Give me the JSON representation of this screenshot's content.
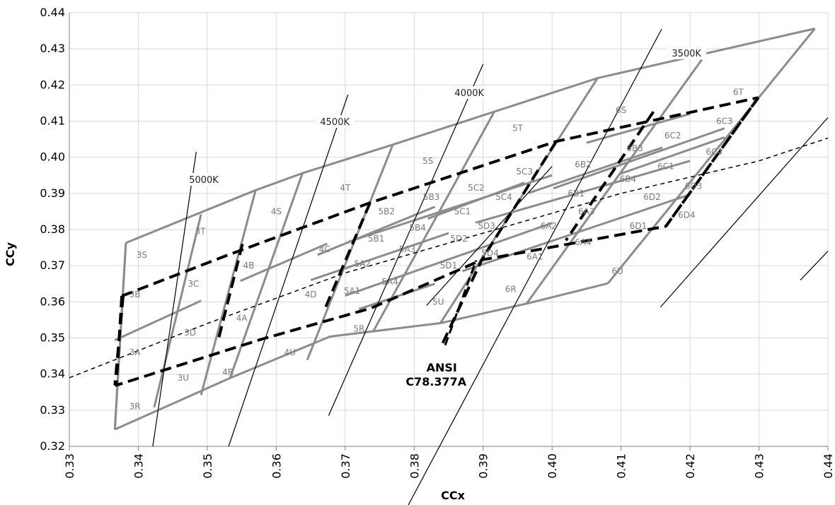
{
  "chart_data": {
    "type": "scatter",
    "xlabel": "CCx",
    "ylabel": "CCy",
    "xlim": [
      0.33,
      0.44
    ],
    "ylim": [
      0.32,
      0.44
    ],
    "xticks": [
      "0.33",
      "0.34",
      "0.35",
      "0.36",
      "0.37",
      "0.38",
      "0.39",
      "0.40",
      "0.41",
      "0.42",
      "0.43",
      "0.44"
    ],
    "yticks": [
      "0.32",
      "0.33",
      "0.34",
      "0.35",
      "0.36",
      "0.37",
      "0.38",
      "0.39",
      "0.40",
      "0.41",
      "0.42",
      "0.43",
      "0.44"
    ],
    "grid": true,
    "colors": {
      "bins": "#8c8c8c",
      "ansi": "#000000",
      "planck": "#000000",
      "cct_lines": "#000000",
      "light_dash": "#c8c8c8"
    },
    "series": [
      {
        "name": "outer_bins",
        "style": "gray",
        "lines": [
          [
            [
              0.3366,
              0.3247
            ],
            [
              0.3533,
              0.3389
            ],
            [
              0.3678,
              0.3504
            ],
            [
              0.3838,
              0.3541
            ],
            [
              0.3963,
              0.3595
            ],
            [
              0.4081,
              0.3651
            ]
          ],
          [
            [
              0.3366,
              0.3247
            ],
            [
              0.3382,
              0.3763
            ]
          ],
          [
            [
              0.3382,
              0.3763
            ],
            [
              0.3569,
              0.3908
            ],
            [
              0.3638,
              0.3956
            ],
            [
              0.3769,
              0.4035
            ],
            [
              0.4066,
              0.4219
            ],
            [
              0.4381,
              0.4356
            ]
          ],
          [
            [
              0.3423,
              0.3308
            ],
            [
              0.3491,
              0.3842
            ]
          ],
          [
            [
              0.3491,
              0.3342
            ],
            [
              0.357,
              0.3908
            ]
          ],
          [
            [
              0.3533,
              0.3389
            ],
            [
              0.3638,
              0.3956
            ]
          ],
          [
            [
              0.3645,
              0.3439
            ],
            [
              0.3769,
              0.4035
            ]
          ],
          [
            [
              0.374,
              0.3516
            ],
            [
              0.3916,
              0.4125
            ]
          ],
          [
            [
              0.3838,
              0.3541
            ],
            [
              0.4066,
              0.4219
            ]
          ],
          [
            [
              0.3963,
              0.3595
            ],
            [
              0.4217,
              0.427
            ]
          ],
          [
            [
              0.4081,
              0.3651
            ],
            [
              0.4381,
              0.4356
            ]
          ],
          [
            [
              0.3382,
              0.3763
            ],
            [
              0.3366,
              0.3247
            ]
          ],
          [
            [
              0.3366,
              0.3494
            ],
            [
              0.3491,
              0.3603
            ]
          ],
          [
            [
              0.3548,
              0.3658
            ],
            [
              0.3674,
              0.3761
            ]
          ],
          [
            [
              0.3706,
              0.3767
            ],
            [
              0.4,
              0.395
            ]
          ],
          [
            [
              0.366,
              0.373
            ],
            [
              0.383,
              0.3863
            ]
          ],
          [
            [
              0.382,
              0.383
            ],
            [
              0.396,
              0.393
            ]
          ],
          [
            [
              0.3889,
              0.3819
            ],
            [
              0.42,
              0.399
            ]
          ],
          [
            [
              0.37,
              0.3617
            ],
            [
              0.4,
              0.3818
            ]
          ],
          [
            [
              0.372,
              0.358
            ],
            [
              0.383,
              0.365
            ]
          ],
          [
            [
              0.387,
              0.3685
            ],
            [
              0.42,
              0.3897
            ]
          ],
          [
            [
              0.41,
              0.3955
            ],
            [
              0.425,
              0.4055
            ]
          ],
          [
            [
              0.405,
              0.404
            ],
            [
              0.42,
              0.412
            ]
          ],
          [
            [
              0.4002,
              0.3914
            ],
            [
              0.425,
              0.408
            ]
          ],
          [
            [
              0.365,
              0.366
            ],
            [
              0.385,
              0.379
            ]
          ],
          [
            [
              0.3966,
              0.3901
            ],
            [
              0.416,
              0.4027
            ]
          ]
        ]
      },
      {
        "name": "ansi_quadrangles",
        "style": "black-dash",
        "lines": [
          [
            [
              0.3376,
              0.3616
            ],
            [
              0.3528,
              0.3728
            ],
            [
              0.3736,
              0.3874
            ],
            [
              0.4006,
              0.4044
            ],
            [
              0.4299,
              0.4165
            ]
          ],
          [
            [
              0.3376,
              0.3616
            ],
            [
              0.3368,
              0.3369
            ],
            [
              0.3578,
              0.3496
            ],
            [
              0.3737,
              0.3582
            ],
            [
              0.3898,
              0.3716
            ],
            [
              0.4165,
              0.3809
            ],
            [
              0.4299,
              0.4165
            ]
          ],
          [
            [
              0.3378,
              0.3616
            ],
            [
              0.3366,
              0.3369
            ]
          ],
          [
            [
              0.3551,
              0.376
            ],
            [
              0.3515,
              0.3487
            ]
          ],
          [
            [
              0.3736,
              0.3874
            ],
            [
              0.367,
              0.3578
            ]
          ],
          [
            [
              0.4006,
              0.4044
            ],
            [
              0.3898,
              0.3716
            ],
            [
              0.384,
              0.348
            ]
          ],
          [
            [
              0.4147,
              0.4126
            ],
            [
              0.402,
              0.377
            ]
          ],
          [
            [
              0.4299,
              0.4165
            ],
            [
              0.4165,
              0.3809
            ]
          ]
        ]
      },
      {
        "name": "planckian_locus",
        "style": "thin-dash",
        "points": [
          [
            0.33,
            0.339
          ],
          [
            0.35,
            0.354
          ],
          [
            0.37,
            0.368
          ],
          [
            0.39,
            0.379
          ],
          [
            0.41,
            0.39
          ],
          [
            0.43,
            0.399
          ],
          [
            0.44,
            0.4053
          ]
        ]
      },
      {
        "name": "cct_lines",
        "style": "thin-solid",
        "lines": [
          [
            [
              0.3421,
              0.32
            ],
            [
              0.3484,
              0.4015
            ]
          ],
          [
            [
              0.3531,
              0.32
            ],
            [
              0.3704,
              0.4173
            ]
          ],
          [
            [
              0.3676,
              0.3285
            ],
            [
              0.39,
              0.4258
            ]
          ],
          [
            [
              0.3781,
              0.3
            ],
            [
              0.4159,
              0.4355
            ]
          ],
          [
            [
              0.3818,
              0.359
            ],
            [
              0.4,
              0.3975
            ]
          ],
          [
            [
              0.4157,
              0.3585
            ],
            [
              0.44,
              0.411
            ]
          ],
          [
            [
              0.436,
              0.366
            ],
            [
              0.44,
              0.374
            ]
          ]
        ]
      }
    ],
    "bin_labels": [
      {
        "text": "3S",
        "x": 0.3405,
        "y": 0.373
      },
      {
        "text": "3T",
        "x": 0.349,
        "y": 0.3795
      },
      {
        "text": "4S",
        "x": 0.36,
        "y": 0.385
      },
      {
        "text": "4T",
        "x": 0.37,
        "y": 0.3915
      },
      {
        "text": "5S",
        "x": 0.382,
        "y": 0.399
      },
      {
        "text": "5T",
        "x": 0.395,
        "y": 0.408
      },
      {
        "text": "6S",
        "x": 0.41,
        "y": 0.413
      },
      {
        "text": "6T",
        "x": 0.427,
        "y": 0.418
      },
      {
        "text": "3B",
        "x": 0.3395,
        "y": 0.362
      },
      {
        "text": "3C",
        "x": 0.348,
        "y": 0.365
      },
      {
        "text": "4C",
        "x": 0.367,
        "y": 0.3745
      },
      {
        "text": "4B",
        "x": 0.356,
        "y": 0.37
      },
      {
        "text": "4D",
        "x": 0.365,
        "y": 0.362
      },
      {
        "text": "4A",
        "x": 0.355,
        "y": 0.3555
      },
      {
        "text": "3D",
        "x": 0.3475,
        "y": 0.3515
      },
      {
        "text": "3A",
        "x": 0.3395,
        "y": 0.346
      },
      {
        "text": "3U",
        "x": 0.3465,
        "y": 0.339
      },
      {
        "text": "3R",
        "x": 0.3395,
        "y": 0.331
      },
      {
        "text": "4R",
        "x": 0.353,
        "y": 0.3405
      },
      {
        "text": "4U",
        "x": 0.362,
        "y": 0.346
      },
      {
        "text": "5R",
        "x": 0.372,
        "y": 0.3525
      },
      {
        "text": "5U",
        "x": 0.3835,
        "y": 0.36
      },
      {
        "text": "6R",
        "x": 0.394,
        "y": 0.3635
      },
      {
        "text": "6U",
        "x": 0.4095,
        "y": 0.3685
      },
      {
        "text": "5A1",
        "x": 0.371,
        "y": 0.363
      },
      {
        "text": "5A2",
        "x": 0.3725,
        "y": 0.3705
      },
      {
        "text": "5A3",
        "x": 0.379,
        "y": 0.3745
      },
      {
        "text": "5A4",
        "x": 0.3765,
        "y": 0.3655
      },
      {
        "text": "5B1",
        "x": 0.3745,
        "y": 0.3775
      },
      {
        "text": "5B2",
        "x": 0.376,
        "y": 0.385
      },
      {
        "text": "5B3",
        "x": 0.3825,
        "y": 0.389
      },
      {
        "text": "5B4",
        "x": 0.3805,
        "y": 0.3805
      },
      {
        "text": "5C1",
        "x": 0.387,
        "y": 0.385
      },
      {
        "text": "5C2",
        "x": 0.389,
        "y": 0.3915
      },
      {
        "text": "5C3",
        "x": 0.396,
        "y": 0.396
      },
      {
        "text": "5C4",
        "x": 0.393,
        "y": 0.389
      },
      {
        "text": "5D1",
        "x": 0.385,
        "y": 0.37
      },
      {
        "text": "5D2",
        "x": 0.3865,
        "y": 0.3775
      },
      {
        "text": "5D3",
        "x": 0.3905,
        "y": 0.381
      },
      {
        "text": "5D4",
        "x": 0.391,
        "y": 0.3735
      },
      {
        "text": "6A1",
        "x": 0.3975,
        "y": 0.3725
      },
      {
        "text": "6A2",
        "x": 0.3995,
        "y": 0.381
      },
      {
        "text": "6A3",
        "x": 0.405,
        "y": 0.385
      },
      {
        "text": "6A4",
        "x": 0.4045,
        "y": 0.3765
      },
      {
        "text": "6B1",
        "x": 0.4035,
        "y": 0.39
      },
      {
        "text": "6B2",
        "x": 0.4045,
        "y": 0.398
      },
      {
        "text": "6B3",
        "x": 0.412,
        "y": 0.4025
      },
      {
        "text": "6B4",
        "x": 0.411,
        "y": 0.394
      },
      {
        "text": "6C1",
        "x": 0.4165,
        "y": 0.3975
      },
      {
        "text": "6C2",
        "x": 0.4175,
        "y": 0.406
      },
      {
        "text": "6C3",
        "x": 0.425,
        "y": 0.41
      },
      {
        "text": "6C4",
        "x": 0.4235,
        "y": 0.4015
      },
      {
        "text": "6D1",
        "x": 0.4125,
        "y": 0.381
      },
      {
        "text": "6D2",
        "x": 0.4145,
        "y": 0.389
      },
      {
        "text": "6D3",
        "x": 0.4205,
        "y": 0.392
      },
      {
        "text": "6D4",
        "x": 0.4195,
        "y": 0.384
      }
    ],
    "cct_labels": [
      {
        "text": "5000K",
        "x": 0.3495,
        "y": 0.3935
      },
      {
        "text": "4500K",
        "x": 0.3685,
        "y": 0.4095
      },
      {
        "text": "4000K",
        "x": 0.388,
        "y": 0.4175
      },
      {
        "text": "3500K",
        "x": 0.4195,
        "y": 0.4285
      }
    ],
    "annotation": {
      "text_line1": "ANSI",
      "text_line2": "C78.377A",
      "x": 0.384,
      "y": 0.3415,
      "arrow_from": [
        0.3845,
        0.348
      ],
      "arrow_to": [
        0.389,
        0.3715
      ]
    }
  }
}
